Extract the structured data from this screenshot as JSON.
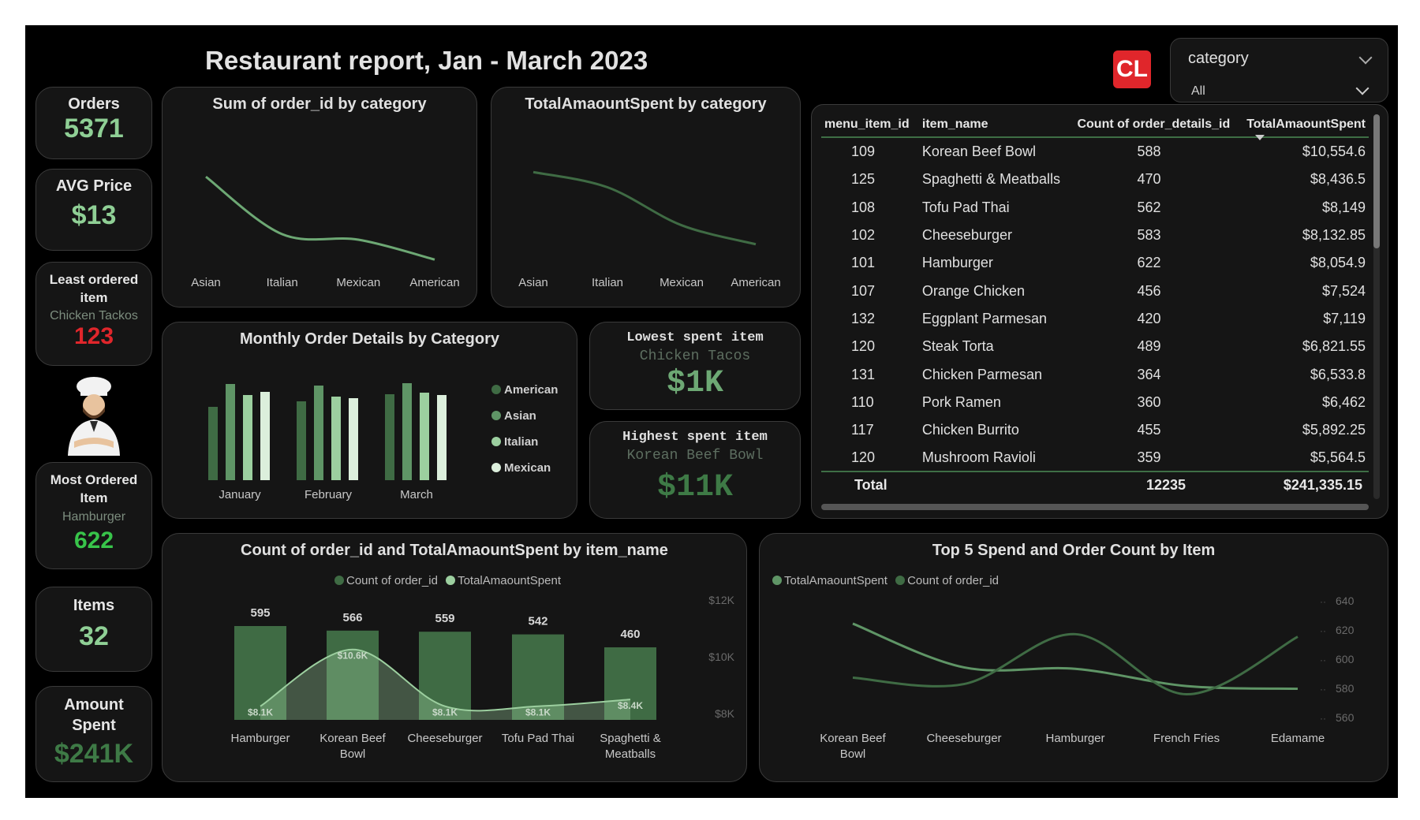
{
  "header": {
    "title": "Restaurant report, Jan - March 2023",
    "logo_text": "CL"
  },
  "filter": {
    "label": "category",
    "value": "All"
  },
  "kpis": {
    "orders": {
      "label": "Orders",
      "value": "5371"
    },
    "avg_price": {
      "label": "AVG Price",
      "value": "$13"
    },
    "least_ordered": {
      "label": "Least ordered item",
      "item": "Chicken Tackos",
      "value": "123"
    },
    "most_ordered": {
      "label": "Most Ordered Item",
      "item": "Hamburger",
      "value": "622"
    },
    "items": {
      "label": "Items",
      "value": "32"
    },
    "amount_spent": {
      "label": "Amount Spent",
      "value": "$241K"
    }
  },
  "spent_items": {
    "lowest": {
      "label": "Lowest spent item",
      "item": "Chicken Tacos",
      "value": "$1K"
    },
    "highest": {
      "label": "Highest spent item",
      "item": "Korean Beef Bowl",
      "value": "$11K"
    }
  },
  "table": {
    "columns": [
      "menu_item_id",
      "item_name",
      "Count of order_details_id",
      "TotalAmaountSpent"
    ],
    "rows": [
      [
        "109",
        "Korean Beef Bowl",
        "588",
        "$10,554.6"
      ],
      [
        "125",
        "Spaghetti & Meatballs",
        "470",
        "$8,436.5"
      ],
      [
        "108",
        "Tofu Pad Thai",
        "562",
        "$8,149"
      ],
      [
        "102",
        "Cheeseburger",
        "583",
        "$8,132.85"
      ],
      [
        "101",
        "Hamburger",
        "622",
        "$8,054.9"
      ],
      [
        "107",
        "Orange Chicken",
        "456",
        "$7,524"
      ],
      [
        "132",
        "Eggplant Parmesan",
        "420",
        "$7,119"
      ],
      [
        "120",
        "Steak Torta",
        "489",
        "$6,821.55"
      ],
      [
        "131",
        "Chicken Parmesan",
        "364",
        "$6,533.8"
      ],
      [
        "110",
        "Pork Ramen",
        "360",
        "$6,462"
      ],
      [
        "117",
        "Chicken Burrito",
        "455",
        "$5,892.25"
      ],
      [
        "120",
        "Mushroom Ravioli",
        "359",
        "$5,564.5"
      ]
    ],
    "total": {
      "label": "Total",
      "count": "12235",
      "amount": "$241,335.15"
    }
  },
  "colors": {
    "accent": "#8fcf95",
    "dark_green": "#3f6b44",
    "mid_green": "#5f9566",
    "light_green": "#9ccf9f",
    "red": "#e0262b",
    "background": "#000000",
    "card": "#151515"
  },
  "chart_data": [
    {
      "id": "orders_by_category",
      "type": "line",
      "title": "Sum of order_id by category",
      "categories": [
        "Asian",
        "Italian",
        "Mexican",
        "American"
      ],
      "series": [
        {
          "values": [
            3470,
            2950,
            2900,
            2720
          ]
        }
      ],
      "ylim": [
        2600,
        3600
      ]
    },
    {
      "id": "spent_by_category",
      "type": "line",
      "title": "TotalAmaountSpent by category",
      "categories": [
        "Asian",
        "Italian",
        "Mexican",
        "American"
      ],
      "series": [
        {
          "values": [
            68000,
            64000,
            54000,
            49000
          ]
        }
      ],
      "ylim": [
        45000,
        72000
      ]
    },
    {
      "id": "monthly_by_category",
      "type": "bar",
      "title": "Monthly Order Details by Category",
      "categories": [
        "January",
        "February",
        "March"
      ],
      "series": [
        {
          "name": "American",
          "values": [
            930,
            1000,
            1090
          ]
        },
        {
          "name": "Asian",
          "values": [
            1220,
            1200,
            1230
          ]
        },
        {
          "name": "Italian",
          "values": [
            1080,
            1060,
            1110
          ]
        },
        {
          "name": "Mexican",
          "values": [
            1120,
            1040,
            1080
          ]
        }
      ],
      "ylim": [
        0,
        1300
      ],
      "legend": "right"
    },
    {
      "id": "count_and_spent_by_item",
      "type": "bar",
      "title": "Count of order_id and TotalAmaountSpent by item_name",
      "categories": [
        "Hamburger",
        "Korean Beef Bowl",
        "Cheeseburger",
        "Tofu Pad Thai",
        "Spaghetti & Meatballs"
      ],
      "series": [
        {
          "name": "Count of order_id",
          "type": "bar",
          "values": [
            595,
            566,
            559,
            542,
            460
          ],
          "labels": [
            "595",
            "566",
            "559",
            "542",
            "460"
          ]
        },
        {
          "name": "TotalAmaountSpent",
          "type": "area",
          "values": [
            8100,
            10600,
            8100,
            8100,
            8400
          ],
          "labels": [
            "$8.1K",
            "$10.6K",
            "$8.1K",
            "$8.1K",
            "$8.4K"
          ]
        }
      ],
      "ylim": [
        0,
        700
      ],
      "y2lim": [
        7500,
        12500
      ],
      "y2ticks": [
        "$12K",
        "$10K",
        "$8K"
      ],
      "legend": "top"
    },
    {
      "id": "top5_spend_and_count",
      "type": "line",
      "title": "Top 5 Spend and Order Count by Item",
      "categories": [
        "Korean Beef Bowl",
        "Cheeseburger",
        "Hamburger",
        "French Fries",
        "Edamame"
      ],
      "series": [
        {
          "name": "TotalAmaountSpent",
          "values": [
            10554.6,
            8132.85,
            8054.9,
            7100,
            6950
          ]
        },
        {
          "name": "Count of order_id",
          "values": [
            588,
            583,
            622,
            575,
            620
          ]
        }
      ],
      "y2lim": [
        555,
        645
      ],
      "y2ticks": [
        "640",
        "620",
        "600",
        "580",
        "560"
      ],
      "legend": "top-left"
    }
  ]
}
